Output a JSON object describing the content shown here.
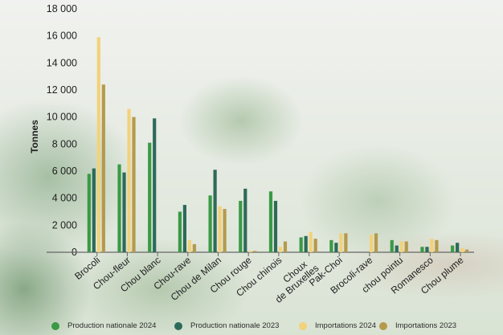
{
  "chart_data": {
    "type": "bar",
    "title": "",
    "xlabel": "",
    "ylabel": "Tonnes",
    "ylim": [
      0,
      18000
    ],
    "yticks": [
      0,
      2000,
      4000,
      6000,
      8000,
      10000,
      12000,
      14000,
      16000,
      18000
    ],
    "ytick_labels": [
      "0",
      "2 000",
      "4 000",
      "6 000",
      "8 000",
      "10 000",
      "12 000",
      "14 000",
      "16 000",
      "18 000"
    ],
    "categories": [
      "Brocoli",
      "Chou-fleur",
      "Chou blanc",
      "Chou-rave",
      "Chou de Milan",
      "Chou rouge",
      "Chou chinois",
      "Choux de Bruxelles",
      "Pak-Choi",
      "Brocoli-rave",
      "chou pointu",
      "Romanesco",
      "Chou plume"
    ],
    "series": [
      {
        "name": "Production nationale 2024",
        "color": "#3a9a45",
        "values": [
          5800,
          6500,
          8100,
          3000,
          4200,
          3800,
          4500,
          1100,
          900,
          0,
          900,
          400,
          500
        ]
      },
      {
        "name": "Production nationale 2023",
        "color": "#2d6a5a",
        "values": [
          6200,
          5900,
          9900,
          3500,
          6100,
          4700,
          3800,
          1200,
          700,
          0,
          500,
          400,
          700
        ]
      },
      {
        "name": "Importations 2024",
        "color": "#f2d27a",
        "values": [
          15900,
          10600,
          0,
          900,
          3400,
          100,
          400,
          1500,
          1400,
          1300,
          800,
          1000,
          300
        ]
      },
      {
        "name": "Importations 2023",
        "color": "#b59a4c",
        "values": [
          12400,
          10000,
          0,
          600,
          3200,
          100,
          800,
          1000,
          1400,
          1400,
          800,
          900,
          200
        ]
      }
    ],
    "grid": false,
    "legend_position": "bottom"
  }
}
